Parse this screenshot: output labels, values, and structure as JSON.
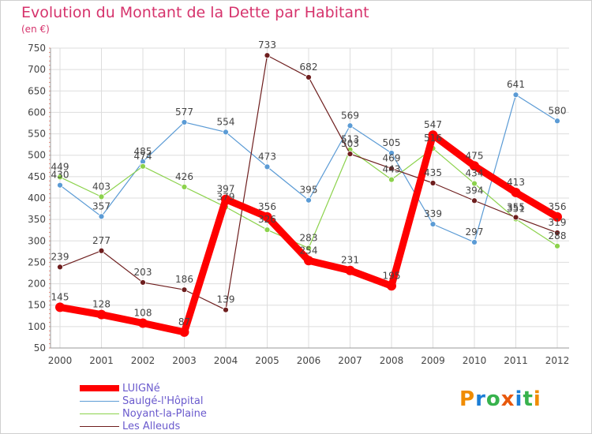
{
  "title": "Evolution du Montant de la Dette par Habitant",
  "unit": "(en €)",
  "brand": {
    "text": "Proxiti",
    "letters": [
      {
        "ch": "P",
        "color": "#f08c00"
      },
      {
        "ch": "r",
        "color": "#1c7ed6"
      },
      {
        "ch": "o",
        "color": "#37b24d"
      },
      {
        "ch": "x",
        "color": "#e8590c"
      },
      {
        "ch": "i",
        "color": "#1c7ed6"
      },
      {
        "ch": "t",
        "color": "#37b24d"
      },
      {
        "ch": "i",
        "color": "#f08c00"
      }
    ]
  },
  "chart_data": {
    "type": "line",
    "title": "Evolution du Montant de la Dette par Habitant",
    "ylabel": "(en €)",
    "xlabel": "",
    "ylim": [
      50,
      750
    ],
    "yticks": [
      50,
      100,
      150,
      200,
      250,
      300,
      350,
      400,
      450,
      500,
      550,
      600,
      650,
      700,
      750
    ],
    "categories": [
      "2000",
      "2001",
      "2002",
      "2003",
      "2004",
      "2005",
      "2006",
      "2007",
      "2008",
      "2009",
      "2010",
      "2011",
      "2012"
    ],
    "grid": true,
    "legend": "bottom-left",
    "series": [
      {
        "name": "LUIGNé",
        "color": "#ff0000",
        "values": [
          145,
          128,
          108,
          87,
          397,
          356,
          254,
          231,
          195,
          547,
          475,
          413,
          356
        ]
      },
      {
        "name": "Saulgé-l'Hôpital",
        "color": "#5b9bd5",
        "values": [
          430,
          357,
          485,
          577,
          554,
          473,
          395,
          569,
          505,
          339,
          297,
          641,
          580
        ]
      },
      {
        "name": "Noyant-la-Plaine",
        "color": "#8cd24c",
        "values": [
          449,
          403,
          474,
          426,
          379,
          326,
          283,
          513,
          443,
          516,
          434,
          351,
          288
        ]
      },
      {
        "name": "Les Alleuds",
        "color": "#6e1e1e",
        "values": [
          239,
          277,
          203,
          186,
          139,
          733,
          682,
          503,
          469,
          435,
          394,
          355,
          319
        ]
      }
    ]
  }
}
